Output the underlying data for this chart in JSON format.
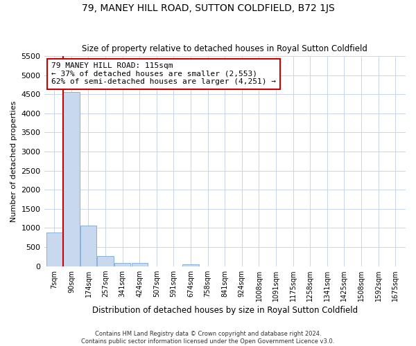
{
  "title": "79, MANEY HILL ROAD, SUTTON COLDFIELD, B72 1JS",
  "subtitle": "Size of property relative to detached houses in Royal Sutton Coldfield",
  "xlabel": "Distribution of detached houses by size in Royal Sutton Coldfield",
  "ylabel": "Number of detached properties",
  "footer_line1": "Contains HM Land Registry data © Crown copyright and database right 2024.",
  "footer_line2": "Contains public sector information licensed under the Open Government Licence v3.0.",
  "bin_labels": [
    "7sqm",
    "90sqm",
    "174sqm",
    "257sqm",
    "341sqm",
    "424sqm",
    "507sqm",
    "591sqm",
    "674sqm",
    "758sqm",
    "841sqm",
    "924sqm",
    "1008sqm",
    "1091sqm",
    "1175sqm",
    "1258sqm",
    "1341sqm",
    "1425sqm",
    "1508sqm",
    "1592sqm",
    "1675sqm"
  ],
  "bar_heights": [
    880,
    4560,
    1060,
    275,
    90,
    80,
    0,
    0,
    50,
    0,
    0,
    0,
    0,
    0,
    0,
    0,
    0,
    0,
    0,
    0,
    0
  ],
  "bar_color": "#c8d8ee",
  "bar_edge_color": "#7aa8d4",
  "property_bin_index": 1,
  "vline_color": "#cc0000",
  "annotation_text": "79 MANEY HILL ROAD: 115sqm\n← 37% of detached houses are smaller (2,553)\n62% of semi-detached houses are larger (4,251) →",
  "annotation_box_color": "#cc0000",
  "ylim": [
    0,
    5500
  ],
  "yticks": [
    0,
    500,
    1000,
    1500,
    2000,
    2500,
    3000,
    3500,
    4000,
    4500,
    5000,
    5500
  ],
  "grid_color": "#c8d4e8",
  "background_color": "#ffffff",
  "axes_background": "#ffffff"
}
